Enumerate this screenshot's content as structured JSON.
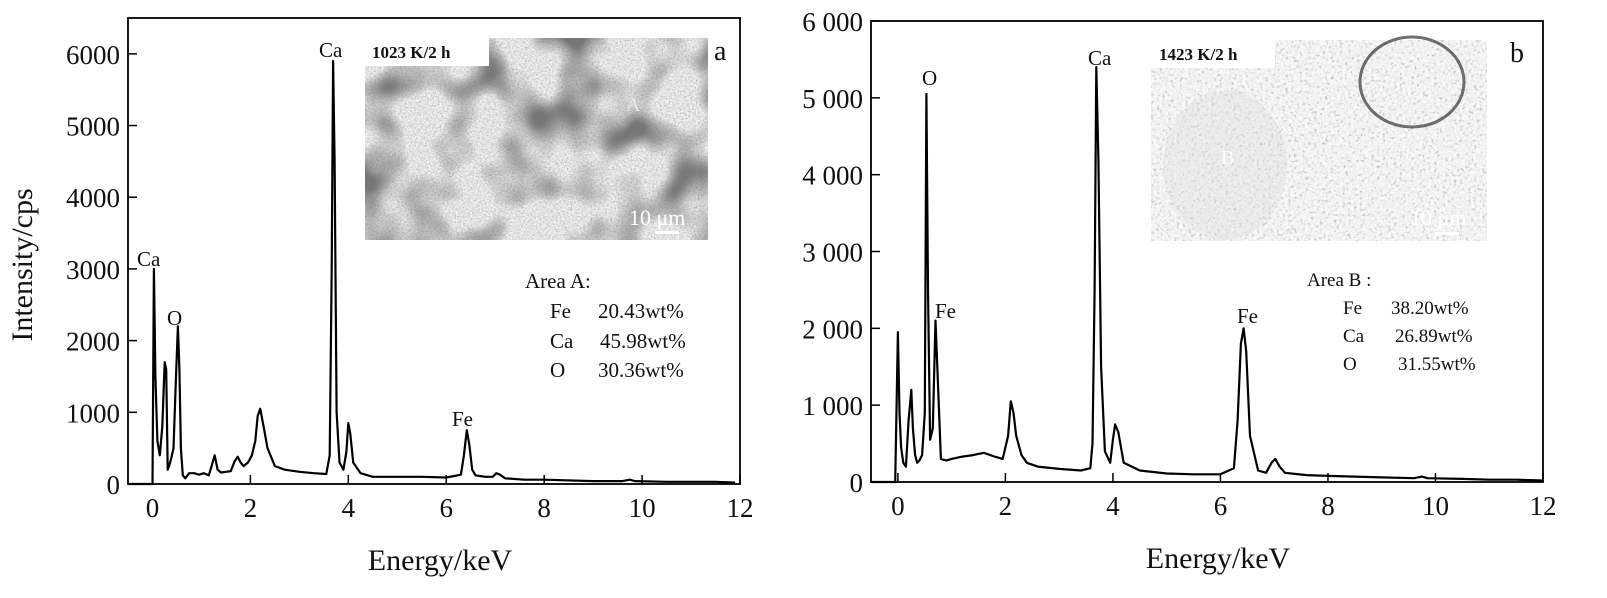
{
  "chart_data": [
    {
      "type": "line",
      "panel_label": "a",
      "xlabel": "Energy/keV",
      "ylabel": "Intensity/cps",
      "xlim": [
        -0.5,
        12
      ],
      "ylim": [
        0,
        6500
      ],
      "x_ticks": [
        0,
        2,
        4,
        6,
        8,
        10,
        12
      ],
      "y_ticks": [
        0,
        1000,
        2000,
        3000,
        4000,
        5000,
        6000
      ],
      "y_tick_labels": [
        "0",
        "1000",
        "2000",
        "3000",
        "4000",
        "5000",
        "6000"
      ],
      "grid": false,
      "series": [
        {
          "x": [
            -0.5,
            0.0,
            0.03,
            0.06,
            0.1,
            0.15,
            0.2,
            0.25,
            0.28,
            0.31,
            0.34,
            0.38,
            0.43,
            0.48,
            0.52,
            0.55,
            0.58,
            0.62,
            0.67,
            0.75,
            0.85,
            0.95,
            1.05,
            1.15,
            1.22,
            1.27,
            1.33,
            1.4,
            1.5,
            1.6,
            1.68,
            1.74,
            1.8,
            1.86,
            1.95,
            2.03,
            2.1,
            2.15,
            2.2,
            2.27,
            2.35,
            2.5,
            2.7,
            3.0,
            3.3,
            3.55,
            3.62,
            3.66,
            3.69,
            3.72,
            3.76,
            3.82,
            3.9,
            3.96,
            4.0,
            4.04,
            4.1,
            4.25,
            4.5,
            5.0,
            5.5,
            6.0,
            6.3,
            6.36,
            6.42,
            6.47,
            6.53,
            6.6,
            6.8,
            6.95,
            7.02,
            7.1,
            7.2,
            7.6,
            8.0,
            9.0,
            9.6,
            9.75,
            9.85,
            10.5,
            11.0,
            11.5,
            11.9
          ],
          "y": [
            0,
            0,
            3000,
            1500,
            600,
            400,
            800,
            1700,
            1600,
            200,
            250,
            350,
            500,
            1500,
            2200,
            1600,
            500,
            120,
            80,
            150,
            150,
            130,
            150,
            120,
            280,
            400,
            200,
            160,
            170,
            180,
            320,
            380,
            300,
            250,
            300,
            400,
            600,
            950,
            1050,
            800,
            500,
            250,
            200,
            170,
            150,
            140,
            400,
            3000,
            5900,
            4500,
            1000,
            300,
            200,
            450,
            850,
            700,
            300,
            150,
            100,
            100,
            100,
            90,
            130,
            400,
            750,
            550,
            200,
            120,
            100,
            100,
            150,
            130,
            80,
            60,
            60,
            40,
            40,
            60,
            40,
            30,
            30,
            30,
            20
          ]
        }
      ],
      "annotations": {
        "peak_labels": [
          "Ca",
          "O",
          "Ca",
          "Fe"
        ],
        "inset_caption": "1023 K/2 h",
        "inset_area_label": "A",
        "inset_scale": "10 μm",
        "composition_title": "Area A:",
        "composition": [
          {
            "element": "Fe",
            "value": "20.43wt%"
          },
          {
            "element": "Ca",
            "value": "45.98wt%"
          },
          {
            "element": "O",
            "value": "30.36wt%"
          }
        ]
      }
    },
    {
      "type": "line",
      "panel_label": "b",
      "xlabel": "Energy/keV",
      "ylabel": "",
      "xlim": [
        -0.5,
        12
      ],
      "ylim": [
        0,
        6000
      ],
      "x_ticks": [
        0,
        2,
        4,
        6,
        8,
        10,
        12
      ],
      "y_ticks": [
        0,
        1000,
        2000,
        3000,
        4000,
        5000,
        6000
      ],
      "y_tick_labels": [
        "0",
        "1 000",
        "2 000",
        "3 000",
        "4 000",
        "5 000",
        "6 000"
      ],
      "grid": false,
      "series": [
        {
          "x": [
            -0.5,
            -0.05,
            0.0,
            0.03,
            0.06,
            0.1,
            0.15,
            0.2,
            0.25,
            0.28,
            0.32,
            0.36,
            0.4,
            0.45,
            0.5,
            0.53,
            0.56,
            0.6,
            0.65,
            0.7,
            0.75,
            0.8,
            0.9,
            1.0,
            1.2,
            1.4,
            1.6,
            1.8,
            1.95,
            2.05,
            2.1,
            2.15,
            2.2,
            2.3,
            2.4,
            2.6,
            3.0,
            3.4,
            3.58,
            3.62,
            3.66,
            3.69,
            3.73,
            3.78,
            3.85,
            3.95,
            4.0,
            4.04,
            4.1,
            4.2,
            4.5,
            5.0,
            5.5,
            6.0,
            6.25,
            6.32,
            6.38,
            6.43,
            6.48,
            6.55,
            6.7,
            6.85,
            6.95,
            7.02,
            7.1,
            7.2,
            7.6,
            8.0,
            9.0,
            9.6,
            9.75,
            9.85,
            10.5,
            11.0,
            11.5,
            12.0
          ],
          "y": [
            0,
            0,
            1950,
            900,
            450,
            250,
            200,
            800,
            1200,
            700,
            350,
            250,
            280,
            350,
            900,
            5050,
            2500,
            550,
            700,
            2100,
            1200,
            300,
            280,
            300,
            330,
            350,
            380,
            330,
            300,
            600,
            1050,
            900,
            600,
            350,
            250,
            200,
            170,
            150,
            180,
            500,
            2500,
            5400,
            4200,
            1500,
            400,
            250,
            550,
            750,
            650,
            250,
            150,
            110,
            100,
            100,
            180,
            800,
            1800,
            2000,
            1700,
            600,
            150,
            120,
            250,
            300,
            200,
            120,
            90,
            80,
            60,
            50,
            70,
            50,
            40,
            30,
            30,
            20
          ]
        }
      ],
      "annotations": {
        "peak_labels": [
          "O",
          "Fe",
          "Ca",
          "Fe"
        ],
        "inset_caption": "1423 K/2 h",
        "inset_area_label": "B",
        "inset_scale": "10 μm",
        "composition_title": "Area B :",
        "composition": [
          {
            "element": "Fe",
            "value": "38.20wt%"
          },
          {
            "element": "Ca",
            "value": "26.89wt%"
          },
          {
            "element": "O",
            "value": "31.55wt%"
          }
        ]
      }
    }
  ]
}
